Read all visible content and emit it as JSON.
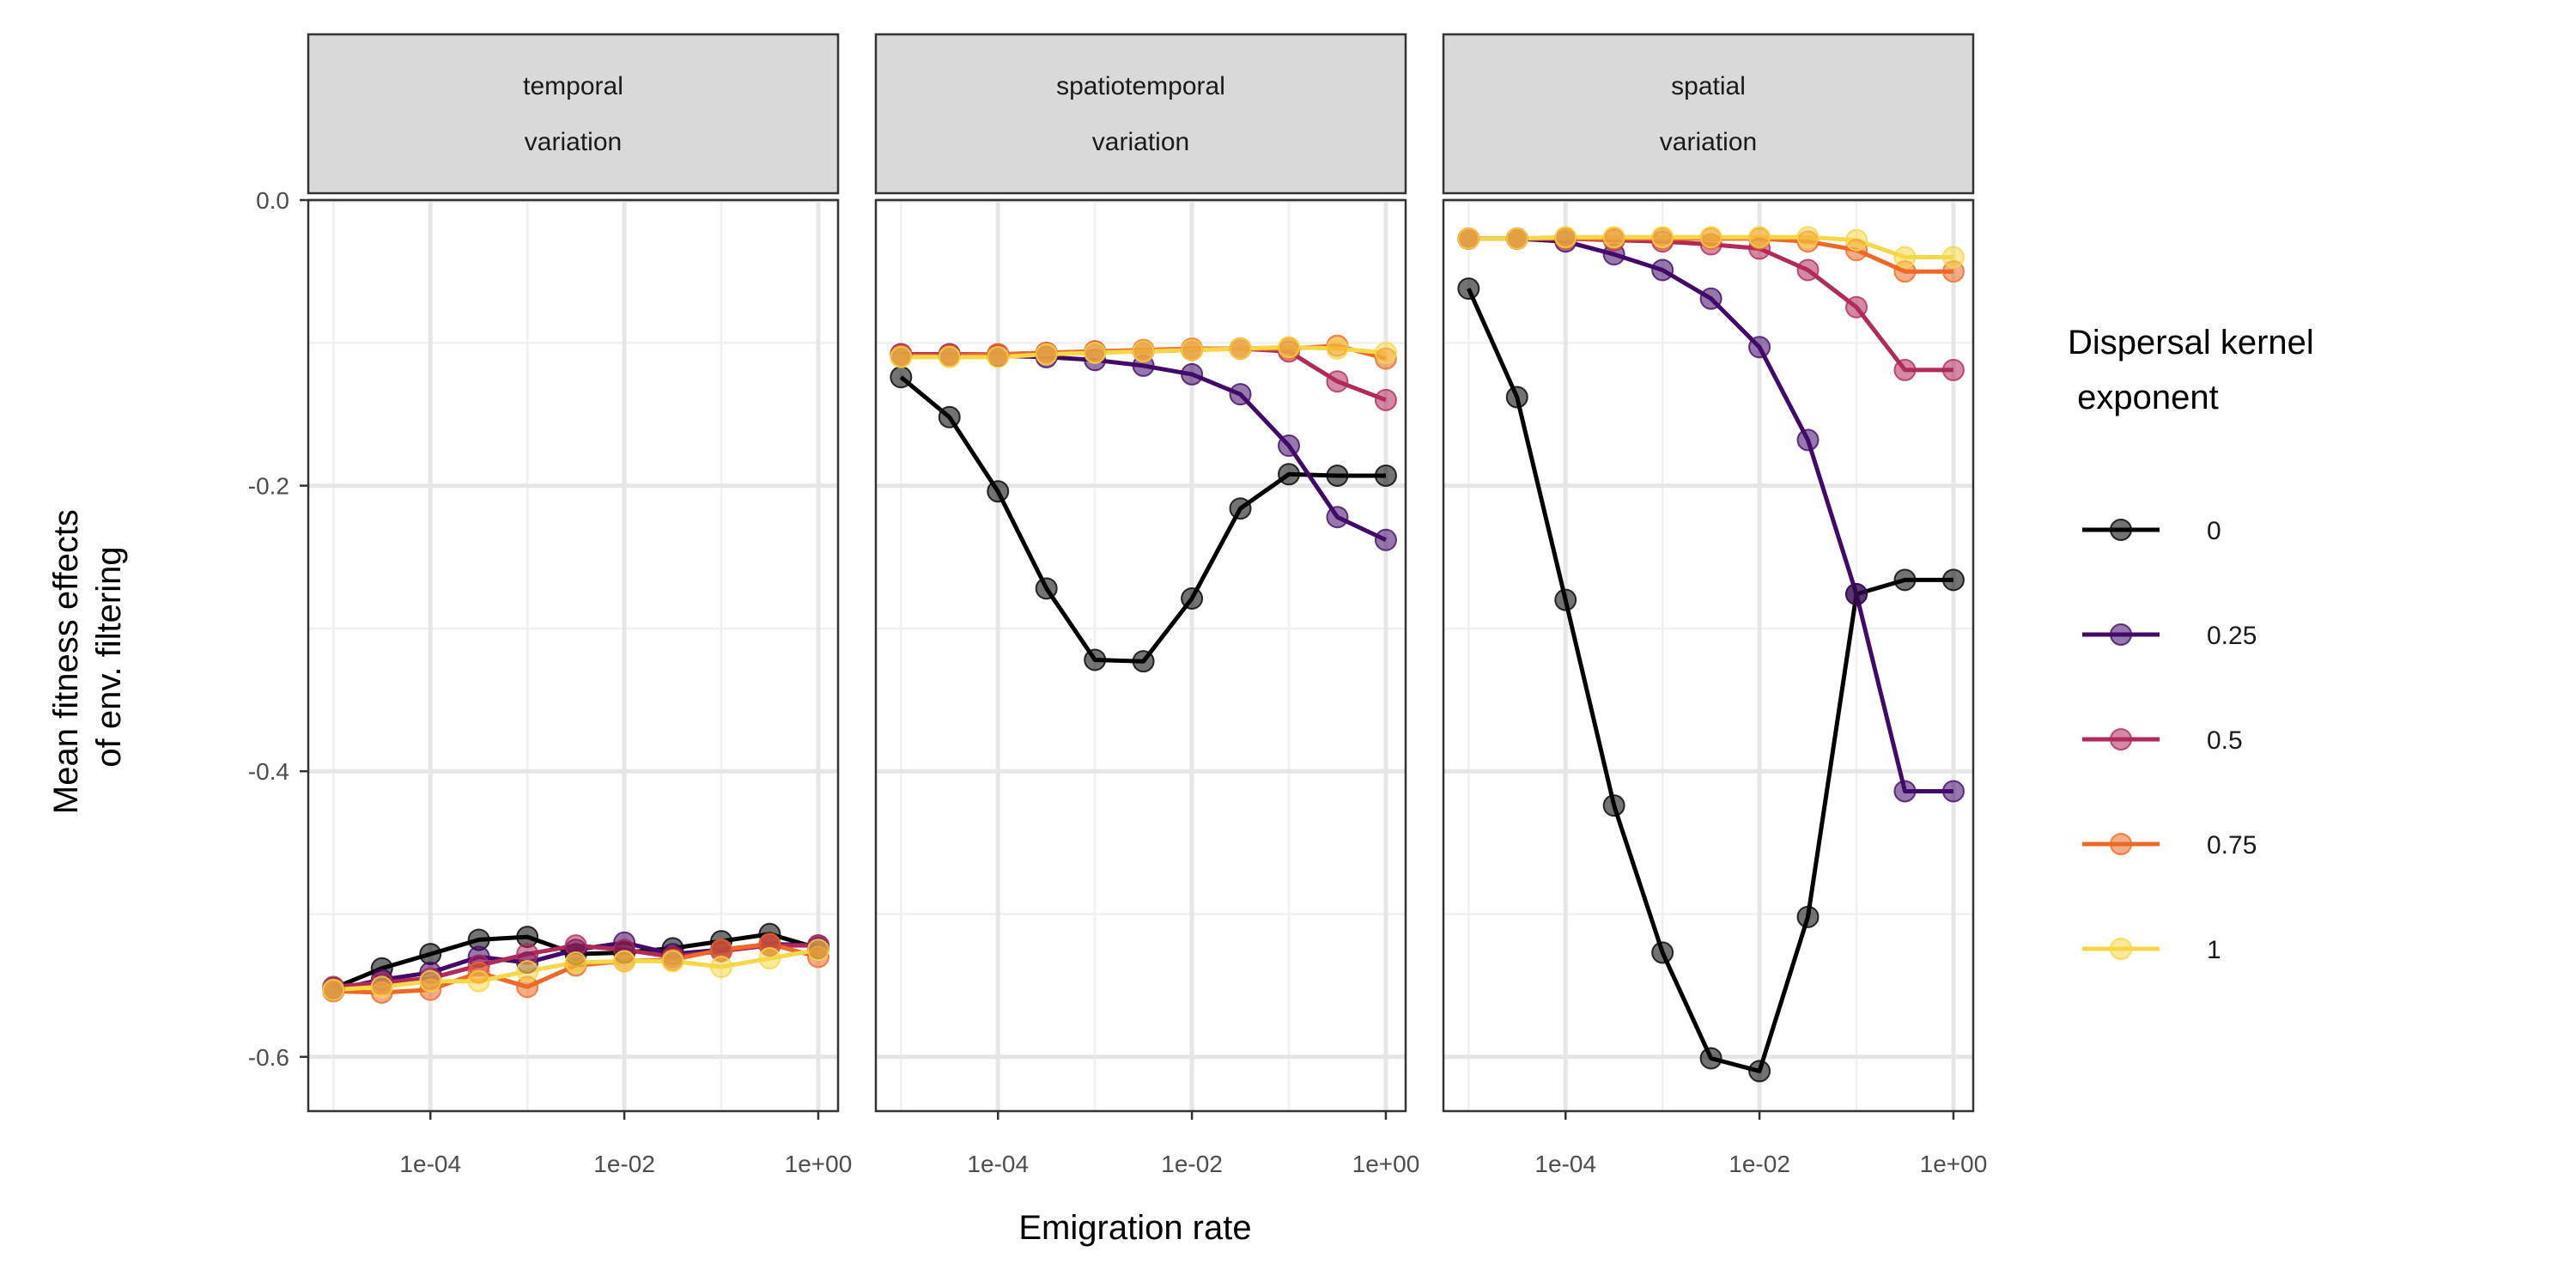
{
  "chart_data": {
    "type": "line",
    "xlabel": "Emigration rate",
    "ylabel_lines": [
      "Mean fitness effects",
      "of env. filtering"
    ],
    "x_scale": "log10",
    "xlim": [
      5.5e-06,
      1.6
    ],
    "ylim": [
      -0.638,
      0.0
    ],
    "x_ticks": [
      0.0001,
      0.01,
      1
    ],
    "x_tick_labels": [
      "1e-04",
      "1e-02",
      "1e+00"
    ],
    "y_ticks": [
      0.0,
      -0.2,
      -0.4,
      -0.6
    ],
    "y_tick_labels": [
      "0.0",
      "-0.2",
      "-0.4",
      "-0.6"
    ],
    "legend_title_lines": [
      "Dispersal kernel",
      " exponent"
    ],
    "legend_position": "right",
    "grid": true,
    "x": [
      1e-05,
      3.16e-05,
      0.0001,
      0.000316,
      0.001,
      0.00316,
      0.01,
      0.0316,
      0.1,
      0.316,
      1
    ],
    "series_styles": [
      {
        "name": "0",
        "color": "#000000"
      },
      {
        "name": "0.25",
        "color": "#420a68"
      },
      {
        "name": "0.5",
        "color": "#b12a5a"
      },
      {
        "name": "0.75",
        "color": "#ed6925"
      },
      {
        "name": "1",
        "color": "#f6d746"
      }
    ],
    "panels": [
      {
        "title_lines": [
          "temporal",
          "variation"
        ],
        "series": [
          {
            "name": "0",
            "values": [
              -0.552,
              -0.538,
              -0.528,
              -0.518,
              -0.516,
              -0.528,
              -0.527,
              -0.524,
              -0.519,
              -0.514,
              -0.524
            ]
          },
          {
            "name": "0.25",
            "values": [
              -0.553,
              -0.546,
              -0.541,
              -0.53,
              -0.534,
              -0.525,
              -0.52,
              -0.528,
              -0.525,
              -0.521,
              -0.522
            ]
          },
          {
            "name": "0.5",
            "values": [
              -0.551,
              -0.548,
              -0.545,
              -0.536,
              -0.528,
              -0.522,
              -0.525,
              -0.53,
              -0.526,
              -0.522,
              -0.522
            ]
          },
          {
            "name": "0.75",
            "values": [
              -0.554,
              -0.555,
              -0.553,
              -0.541,
              -0.551,
              -0.536,
              -0.533,
              -0.532,
              -0.525,
              -0.521,
              -0.53
            ]
          },
          {
            "name": "1",
            "values": [
              -0.553,
              -0.551,
              -0.547,
              -0.547,
              -0.54,
              -0.534,
              -0.533,
              -0.533,
              -0.537,
              -0.531,
              -0.525
            ]
          }
        ]
      },
      {
        "title_lines": [
          "spatiotemporal",
          "variation"
        ],
        "series": [
          {
            "name": "0",
            "values": [
              -0.124,
              -0.152,
              -0.204,
              -0.272,
              -0.322,
              -0.323,
              -0.279,
              -0.216,
              -0.192,
              -0.193,
              -0.193
            ]
          },
          {
            "name": "0.25",
            "values": [
              -0.108,
              -0.108,
              -0.109,
              -0.11,
              -0.112,
              -0.116,
              -0.122,
              -0.136,
              -0.172,
              -0.222,
              -0.238
            ]
          },
          {
            "name": "0.5",
            "values": [
              -0.108,
              -0.108,
              -0.108,
              -0.107,
              -0.106,
              -0.106,
              -0.105,
              -0.104,
              -0.106,
              -0.127,
              -0.14
            ]
          },
          {
            "name": "0.75",
            "values": [
              -0.109,
              -0.109,
              -0.108,
              -0.107,
              -0.106,
              -0.105,
              -0.104,
              -0.104,
              -0.104,
              -0.102,
              -0.111
            ]
          },
          {
            "name": "1",
            "values": [
              -0.11,
              -0.11,
              -0.11,
              -0.108,
              -0.107,
              -0.106,
              -0.105,
              -0.104,
              -0.103,
              -0.104,
              -0.107
            ]
          }
        ]
      },
      {
        "title_lines": [
          "spatial",
          "variation"
        ],
        "series": [
          {
            "name": "0",
            "values": [
              -0.062,
              -0.138,
              -0.28,
              -0.424,
              -0.527,
              -0.601,
              -0.61,
              -0.502,
              -0.276,
              -0.266,
              -0.266
            ]
          },
          {
            "name": "0.25",
            "values": [
              -0.027,
              -0.027,
              -0.029,
              -0.038,
              -0.049,
              -0.069,
              -0.103,
              -0.168,
              -0.276,
              -0.414,
              -0.414
            ]
          },
          {
            "name": "0.5",
            "values": [
              -0.027,
              -0.027,
              -0.027,
              -0.028,
              -0.029,
              -0.031,
              -0.034,
              -0.049,
              -0.075,
              -0.119,
              -0.119
            ]
          },
          {
            "name": "0.75",
            "values": [
              -0.027,
              -0.027,
              -0.027,
              -0.027,
              -0.027,
              -0.027,
              -0.027,
              -0.029,
              -0.035,
              -0.05,
              -0.05
            ]
          },
          {
            "name": "1",
            "values": [
              -0.027,
              -0.027,
              -0.026,
              -0.026,
              -0.026,
              -0.026,
              -0.026,
              -0.026,
              -0.028,
              -0.04,
              -0.04
            ]
          }
        ]
      }
    ]
  }
}
